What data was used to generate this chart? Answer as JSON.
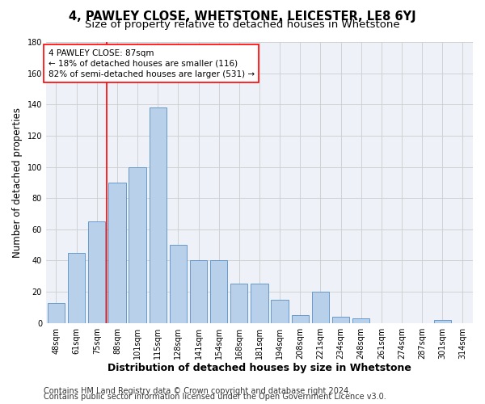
{
  "title": "4, PAWLEY CLOSE, WHETSTONE, LEICESTER, LE8 6YJ",
  "subtitle": "Size of property relative to detached houses in Whetstone",
  "xlabel": "Distribution of detached houses by size in Whetstone",
  "ylabel": "Number of detached properties",
  "bar_labels": [
    "48sqm",
    "61sqm",
    "75sqm",
    "88sqm",
    "101sqm",
    "115sqm",
    "128sqm",
    "141sqm",
    "154sqm",
    "168sqm",
    "181sqm",
    "194sqm",
    "208sqm",
    "221sqm",
    "234sqm",
    "248sqm",
    "261sqm",
    "274sqm",
    "287sqm",
    "301sqm",
    "314sqm"
  ],
  "bar_values": [
    13,
    45,
    65,
    90,
    100,
    138,
    50,
    40,
    40,
    25,
    25,
    15,
    5,
    20,
    4,
    3,
    0,
    0,
    0,
    2,
    0
  ],
  "bar_color": "#b8d0ea",
  "bar_edgecolor": "#6699cc",
  "annotation_line1": "4 PAWLEY CLOSE: 87sqm",
  "annotation_line2": "← 18% of detached houses are smaller (116)",
  "annotation_line3": "82% of semi-detached houses are larger (531) →",
  "ylim": [
    0,
    180
  ],
  "yticks": [
    0,
    20,
    40,
    60,
    80,
    100,
    120,
    140,
    160,
    180
  ],
  "footer1": "Contains HM Land Registry data © Crown copyright and database right 2024.",
  "footer2": "Contains public sector information licensed under the Open Government Licence v3.0.",
  "bg_color": "#eef2f8",
  "grid_color": "#cccccc",
  "title_fontsize": 10.5,
  "subtitle_fontsize": 9.5,
  "xlabel_fontsize": 9,
  "ylabel_fontsize": 8.5,
  "tick_fontsize": 7,
  "annotation_fontsize": 7.5,
  "footer_fontsize": 7
}
